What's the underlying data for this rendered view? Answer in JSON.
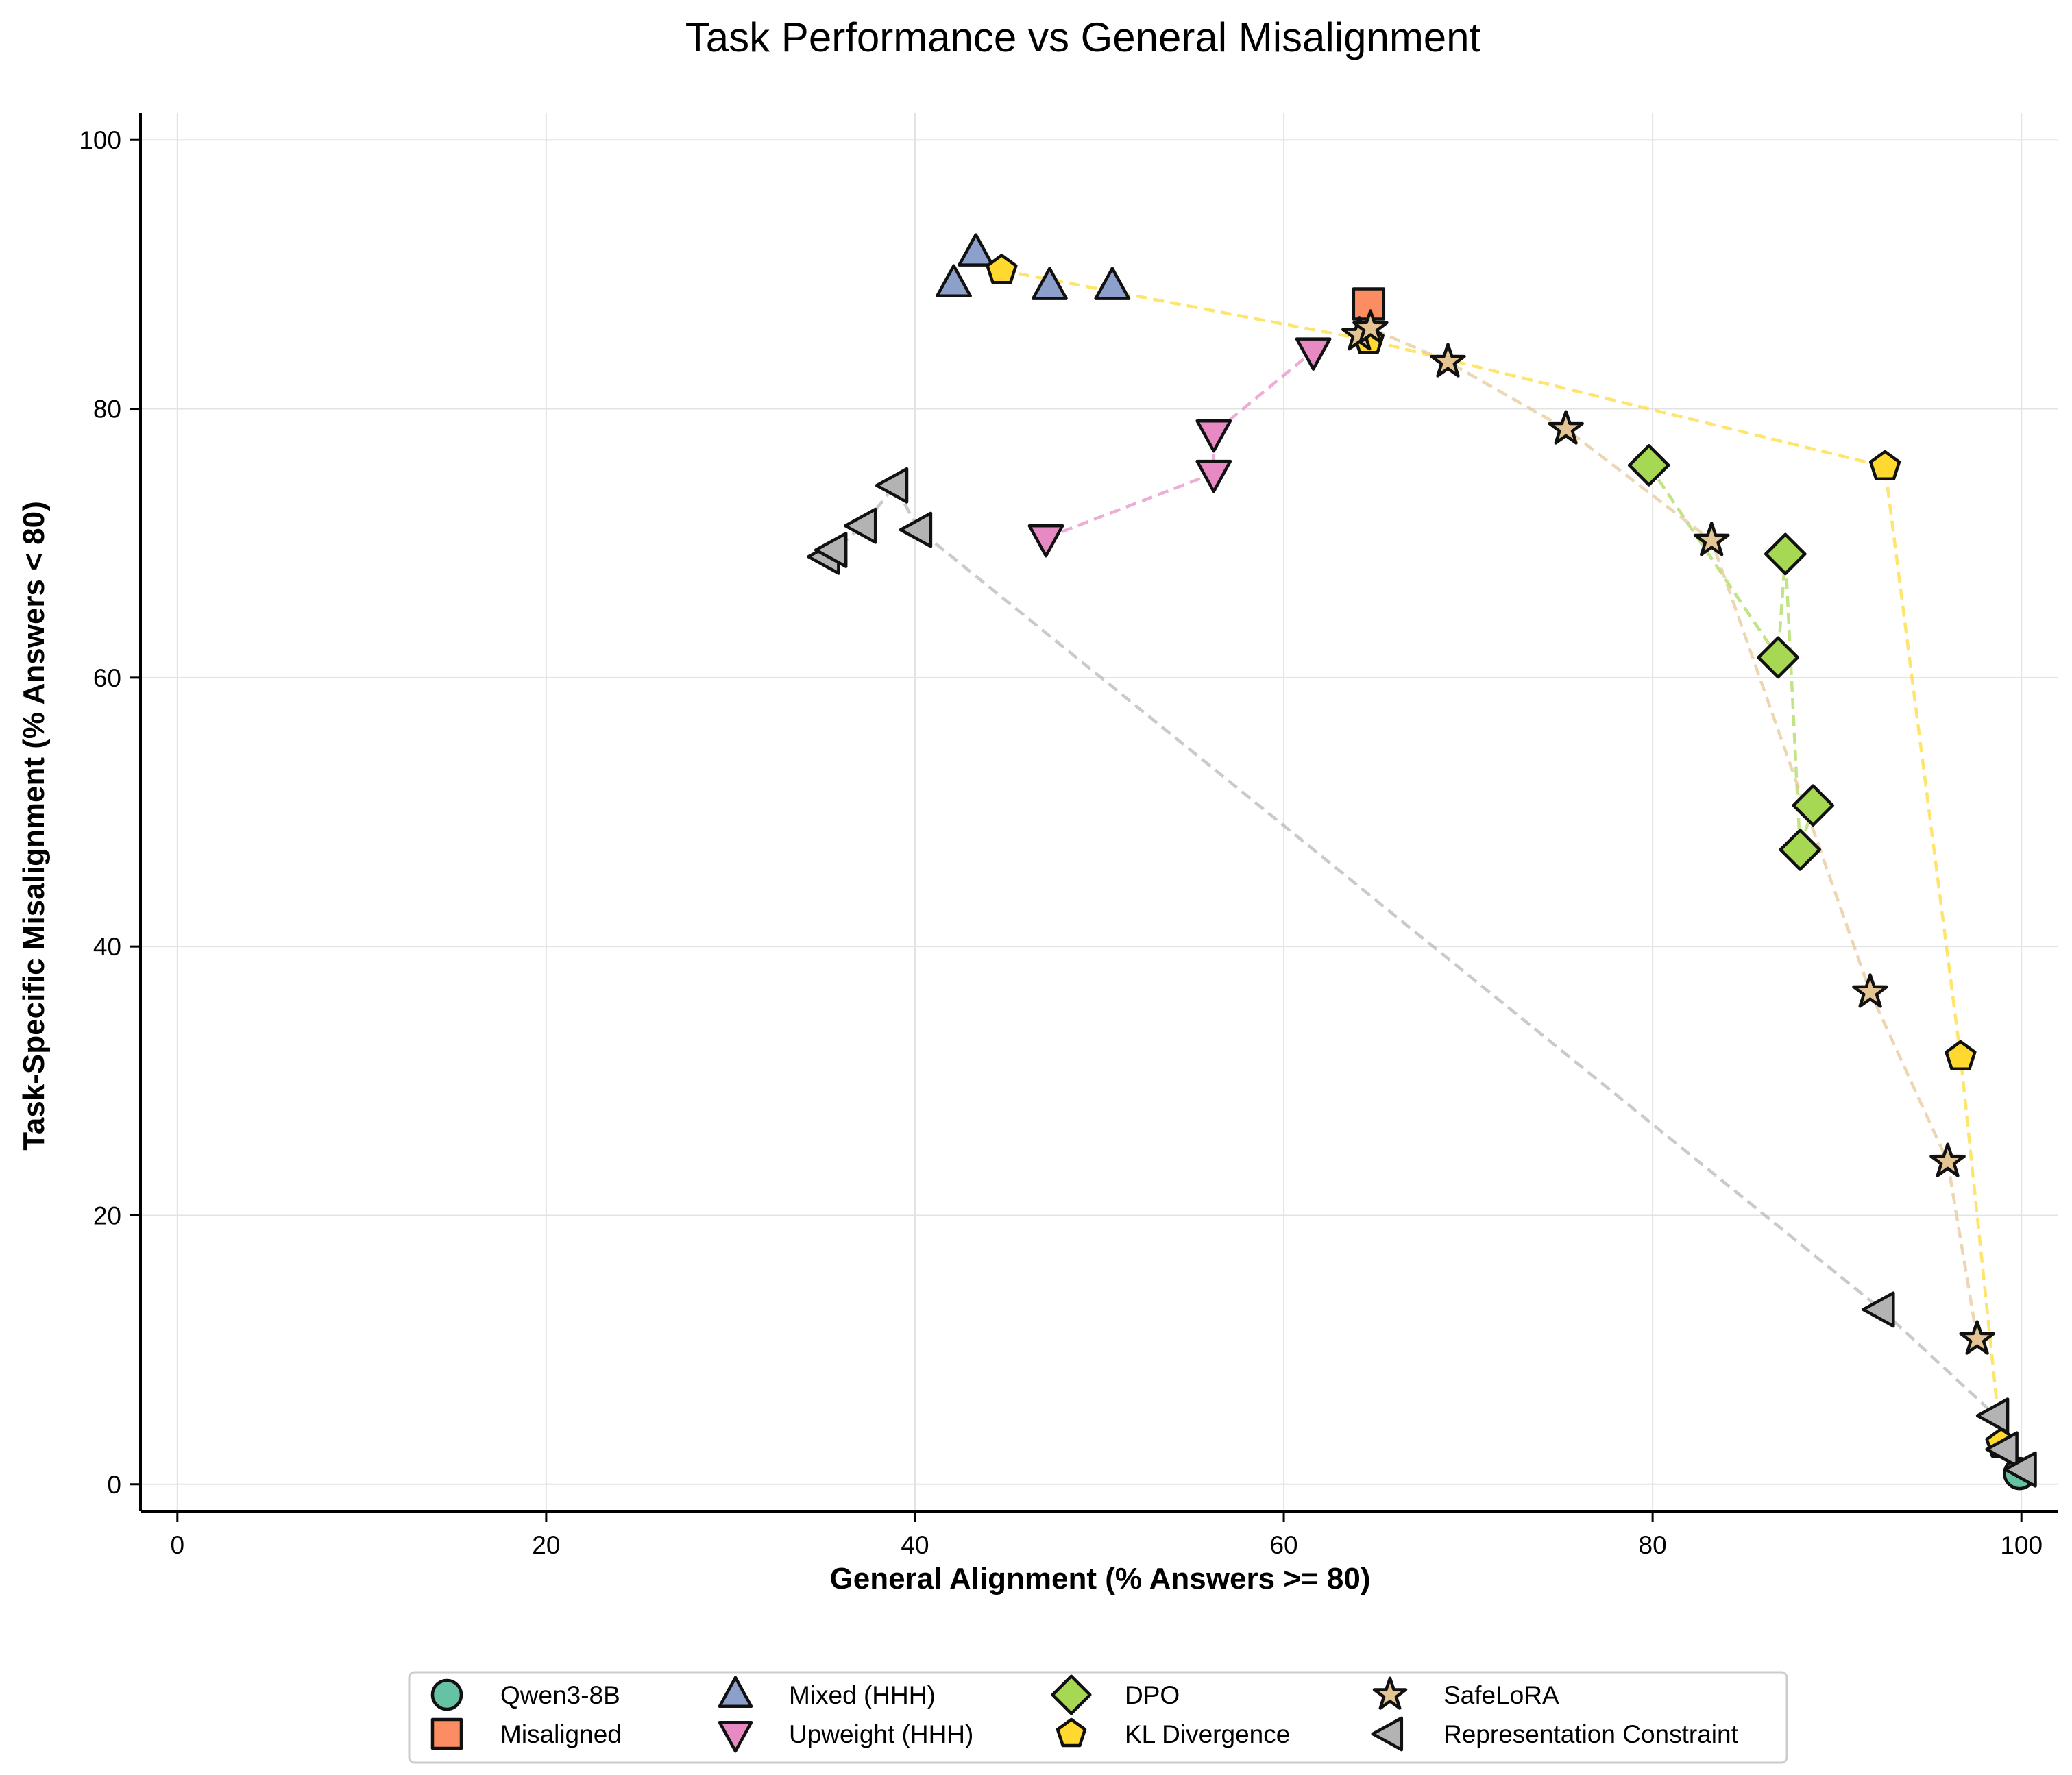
{
  "chart_data": {
    "type": "scatter",
    "title": "Task Performance vs General Misalignment",
    "xlabel": "General Alignment (% Answers >= 80)",
    "ylabel": "Task-Specific Misalignment (% Answers < 80)",
    "xlim": [
      -2,
      102
    ],
    "ylim": [
      -2,
      102
    ],
    "xticks": [
      0,
      20,
      40,
      60,
      80,
      100
    ],
    "yticks": [
      0,
      20,
      40,
      60,
      80,
      100
    ],
    "grid": true,
    "legend_position": "bottom-center",
    "series": [
      {
        "name": "Qwen3-8B",
        "marker": "circle",
        "color": "#66c2a5",
        "connected": false,
        "points": [
          [
            99.9,
            0.8
          ]
        ]
      },
      {
        "name": "Misaligned",
        "marker": "square",
        "color": "#fc8d62",
        "connected": false,
        "points": [
          [
            64.6,
            87.8
          ]
        ]
      },
      {
        "name": "Mixed (HHH)",
        "marker": "triangle-up",
        "color": "#8da0cb",
        "connected": false,
        "points": [
          [
            42.1,
            89.3
          ],
          [
            43.3,
            91.6
          ],
          [
            47.3,
            89.1
          ],
          [
            50.7,
            89.1
          ]
        ]
      },
      {
        "name": "Upweight (HHH)",
        "marker": "triangle-down",
        "color": "#e78ac3",
        "connected": true,
        "points": [
          [
            47.1,
            70.4
          ],
          [
            56.2,
            75.2
          ],
          [
            56.2,
            78.2
          ],
          [
            61.6,
            84.3
          ]
        ]
      },
      {
        "name": "DPO",
        "marker": "diamond",
        "color": "#a6d854",
        "connected": true,
        "points": [
          [
            79.8,
            75.8
          ],
          [
            86.8,
            61.5
          ],
          [
            87.2,
            69.2
          ],
          [
            88.0,
            47.2
          ],
          [
            88.7,
            50.5
          ]
        ]
      },
      {
        "name": "KL Divergence",
        "marker": "pentagon",
        "color": "#ffd92f",
        "connected": true,
        "points": [
          [
            44.7,
            90.3
          ],
          [
            64.6,
            85.1
          ],
          [
            92.6,
            75.7
          ],
          [
            96.7,
            31.8
          ],
          [
            98.9,
            3.0
          ]
        ]
      },
      {
        "name": "SafeLoRA",
        "marker": "star",
        "color": "#e5c494",
        "connected": true,
        "points": [
          [
            64.1,
            85.5
          ],
          [
            64.7,
            86.0
          ],
          [
            68.9,
            83.5
          ],
          [
            75.3,
            78.5
          ],
          [
            83.2,
            70.2
          ],
          [
            91.8,
            36.6
          ],
          [
            96.0,
            24.0
          ],
          [
            97.6,
            10.8
          ]
        ]
      },
      {
        "name": "Representation Constraint",
        "marker": "triangle-left",
        "color": "#b3b3b3",
        "connected": true,
        "points": [
          [
            35.2,
            69.0
          ],
          [
            35.6,
            69.5
          ],
          [
            37.2,
            71.3
          ],
          [
            38.9,
            74.3
          ],
          [
            40.2,
            71.0
          ],
          [
            92.4,
            13.0
          ],
          [
            98.6,
            5.1
          ],
          [
            99.1,
            2.6
          ],
          [
            100.1,
            1.1
          ]
        ]
      }
    ]
  }
}
